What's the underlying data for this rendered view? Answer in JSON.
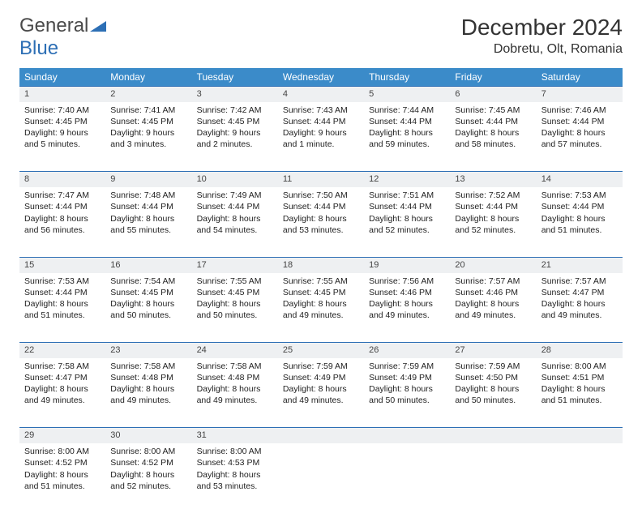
{
  "logo": {
    "general": "General",
    "blue": "Blue"
  },
  "title": "December 2024",
  "location": "Dobretu, Olt, Romania",
  "colors": {
    "header_bg": "#3b8bc9",
    "row_divider": "#2d6fb5",
    "daynum_bg": "#eef0f2",
    "text": "#222222"
  },
  "dayHeaders": [
    "Sunday",
    "Monday",
    "Tuesday",
    "Wednesday",
    "Thursday",
    "Friday",
    "Saturday"
  ],
  "weeks": [
    [
      {
        "n": "1",
        "sr": "Sunrise: 7:40 AM",
        "ss": "Sunset: 4:45 PM",
        "dl": "Daylight: 9 hours and 5 minutes."
      },
      {
        "n": "2",
        "sr": "Sunrise: 7:41 AM",
        "ss": "Sunset: 4:45 PM",
        "dl": "Daylight: 9 hours and 3 minutes."
      },
      {
        "n": "3",
        "sr": "Sunrise: 7:42 AM",
        "ss": "Sunset: 4:45 PM",
        "dl": "Daylight: 9 hours and 2 minutes."
      },
      {
        "n": "4",
        "sr": "Sunrise: 7:43 AM",
        "ss": "Sunset: 4:44 PM",
        "dl": "Daylight: 9 hours and 1 minute."
      },
      {
        "n": "5",
        "sr": "Sunrise: 7:44 AM",
        "ss": "Sunset: 4:44 PM",
        "dl": "Daylight: 8 hours and 59 minutes."
      },
      {
        "n": "6",
        "sr": "Sunrise: 7:45 AM",
        "ss": "Sunset: 4:44 PM",
        "dl": "Daylight: 8 hours and 58 minutes."
      },
      {
        "n": "7",
        "sr": "Sunrise: 7:46 AM",
        "ss": "Sunset: 4:44 PM",
        "dl": "Daylight: 8 hours and 57 minutes."
      }
    ],
    [
      {
        "n": "8",
        "sr": "Sunrise: 7:47 AM",
        "ss": "Sunset: 4:44 PM",
        "dl": "Daylight: 8 hours and 56 minutes."
      },
      {
        "n": "9",
        "sr": "Sunrise: 7:48 AM",
        "ss": "Sunset: 4:44 PM",
        "dl": "Daylight: 8 hours and 55 minutes."
      },
      {
        "n": "10",
        "sr": "Sunrise: 7:49 AM",
        "ss": "Sunset: 4:44 PM",
        "dl": "Daylight: 8 hours and 54 minutes."
      },
      {
        "n": "11",
        "sr": "Sunrise: 7:50 AM",
        "ss": "Sunset: 4:44 PM",
        "dl": "Daylight: 8 hours and 53 minutes."
      },
      {
        "n": "12",
        "sr": "Sunrise: 7:51 AM",
        "ss": "Sunset: 4:44 PM",
        "dl": "Daylight: 8 hours and 52 minutes."
      },
      {
        "n": "13",
        "sr": "Sunrise: 7:52 AM",
        "ss": "Sunset: 4:44 PM",
        "dl": "Daylight: 8 hours and 52 minutes."
      },
      {
        "n": "14",
        "sr": "Sunrise: 7:53 AM",
        "ss": "Sunset: 4:44 PM",
        "dl": "Daylight: 8 hours and 51 minutes."
      }
    ],
    [
      {
        "n": "15",
        "sr": "Sunrise: 7:53 AM",
        "ss": "Sunset: 4:44 PM",
        "dl": "Daylight: 8 hours and 51 minutes."
      },
      {
        "n": "16",
        "sr": "Sunrise: 7:54 AM",
        "ss": "Sunset: 4:45 PM",
        "dl": "Daylight: 8 hours and 50 minutes."
      },
      {
        "n": "17",
        "sr": "Sunrise: 7:55 AM",
        "ss": "Sunset: 4:45 PM",
        "dl": "Daylight: 8 hours and 50 minutes."
      },
      {
        "n": "18",
        "sr": "Sunrise: 7:55 AM",
        "ss": "Sunset: 4:45 PM",
        "dl": "Daylight: 8 hours and 49 minutes."
      },
      {
        "n": "19",
        "sr": "Sunrise: 7:56 AM",
        "ss": "Sunset: 4:46 PM",
        "dl": "Daylight: 8 hours and 49 minutes."
      },
      {
        "n": "20",
        "sr": "Sunrise: 7:57 AM",
        "ss": "Sunset: 4:46 PM",
        "dl": "Daylight: 8 hours and 49 minutes."
      },
      {
        "n": "21",
        "sr": "Sunrise: 7:57 AM",
        "ss": "Sunset: 4:47 PM",
        "dl": "Daylight: 8 hours and 49 minutes."
      }
    ],
    [
      {
        "n": "22",
        "sr": "Sunrise: 7:58 AM",
        "ss": "Sunset: 4:47 PM",
        "dl": "Daylight: 8 hours and 49 minutes."
      },
      {
        "n": "23",
        "sr": "Sunrise: 7:58 AM",
        "ss": "Sunset: 4:48 PM",
        "dl": "Daylight: 8 hours and 49 minutes."
      },
      {
        "n": "24",
        "sr": "Sunrise: 7:58 AM",
        "ss": "Sunset: 4:48 PM",
        "dl": "Daylight: 8 hours and 49 minutes."
      },
      {
        "n": "25",
        "sr": "Sunrise: 7:59 AM",
        "ss": "Sunset: 4:49 PM",
        "dl": "Daylight: 8 hours and 49 minutes."
      },
      {
        "n": "26",
        "sr": "Sunrise: 7:59 AM",
        "ss": "Sunset: 4:49 PM",
        "dl": "Daylight: 8 hours and 50 minutes."
      },
      {
        "n": "27",
        "sr": "Sunrise: 7:59 AM",
        "ss": "Sunset: 4:50 PM",
        "dl": "Daylight: 8 hours and 50 minutes."
      },
      {
        "n": "28",
        "sr": "Sunrise: 8:00 AM",
        "ss": "Sunset: 4:51 PM",
        "dl": "Daylight: 8 hours and 51 minutes."
      }
    ],
    [
      {
        "n": "29",
        "sr": "Sunrise: 8:00 AM",
        "ss": "Sunset: 4:52 PM",
        "dl": "Daylight: 8 hours and 51 minutes."
      },
      {
        "n": "30",
        "sr": "Sunrise: 8:00 AM",
        "ss": "Sunset: 4:52 PM",
        "dl": "Daylight: 8 hours and 52 minutes."
      },
      {
        "n": "31",
        "sr": "Sunrise: 8:00 AM",
        "ss": "Sunset: 4:53 PM",
        "dl": "Daylight: 8 hours and 53 minutes."
      },
      null,
      null,
      null,
      null
    ]
  ]
}
